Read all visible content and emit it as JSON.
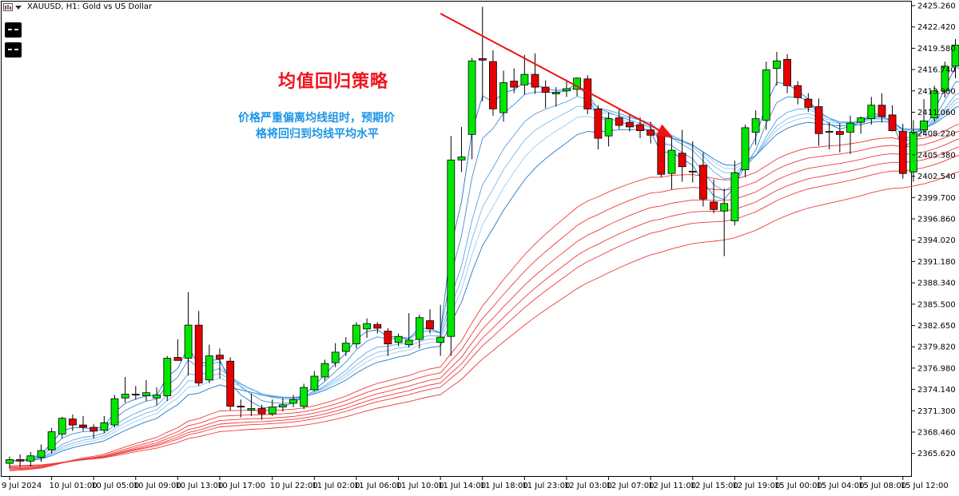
{
  "header": {
    "symbol_title": "XAUUSD, H1:  Gold vs US Dollar",
    "icon": "bars-chart-icon"
  },
  "annotation": {
    "title": "均值回归策略",
    "desc_line1": "价格严重偏离均线组时，预期价",
    "desc_line2": "格将回归到均线平均水平"
  },
  "colors": {
    "bull": "#00e600",
    "bear": "#e60000",
    "fast_ma": [
      "#1f78c8",
      "#3b8fd9",
      "#5aa3e4",
      "#7ab8ec",
      "#98cbf2"
    ],
    "slow_ma": "#ee3a3a",
    "arrow": "#f01010",
    "grid": "#000000"
  },
  "chart_data": {
    "type": "candlestick",
    "symbol": "XAUUSD",
    "timeframe": "H1",
    "title": "XAUUSD, H1:  Gold vs US Dollar",
    "ylim": [
      2362.5,
      2425.9
    ],
    "y_ticks": [
      "2365.620",
      "2368.460",
      "2371.300",
      "2374.140",
      "2376.980",
      "2379.820",
      "2382.650",
      "2385.500",
      "2388.340",
      "2391.180",
      "2394.020",
      "2396.860",
      "2399.700",
      "2402.540",
      "2405.380",
      "2408.220",
      "2411.060",
      "2413.900",
      "2416.740",
      "2419.580",
      "2422.420",
      "2425.260"
    ],
    "x_ticks": [
      {
        "index": 0,
        "label": "9 Jul 2024"
      },
      {
        "index": 4,
        "label": "10 Jul 01:00"
      },
      {
        "index": 8,
        "label": "10 Jul 05:00"
      },
      {
        "index": 12,
        "label": "10 Jul 09:00"
      },
      {
        "index": 16,
        "label": "10 Jul 13:00"
      },
      {
        "index": 20,
        "label": "10 Jul 17:00"
      },
      {
        "index": 25,
        "label": "10 Jul 22:00"
      },
      {
        "index": 29,
        "label": "11 Jul 02:00"
      },
      {
        "index": 33,
        "label": "11 Jul 06:00"
      },
      {
        "index": 37,
        "label": "11 Jul 10:00"
      },
      {
        "index": 41,
        "label": "11 Jul 14:00"
      },
      {
        "index": 45,
        "label": "11 Jul 18:00"
      },
      {
        "index": 49,
        "label": "11 Jul 23:00"
      },
      {
        "index": 53,
        "label": "12 Jul 03:00"
      },
      {
        "index": 57,
        "label": "12 Jul 07:00"
      },
      {
        "index": 61,
        "label": "12 Jul 11:00"
      },
      {
        "index": 65,
        "label": "12 Jul 15:00"
      },
      {
        "index": 69,
        "label": "12 Jul 19:00"
      },
      {
        "index": 73,
        "label": "15 Jul 00:00"
      },
      {
        "index": 77,
        "label": "15 Jul 04:00"
      },
      {
        "index": 81,
        "label": "15 Jul 08:00"
      },
      {
        "index": 85,
        "label": "15 Jul 12:00"
      }
    ],
    "candles": [
      [
        2364.3,
        2365.2,
        2363.6,
        2364.8
      ],
      [
        2364.8,
        2365.5,
        2363.8,
        2364.6
      ],
      [
        2364.6,
        2365.8,
        2363.9,
        2365.3
      ],
      [
        2365.1,
        2366.8,
        2364.5,
        2366.0
      ],
      [
        2366.1,
        2369.0,
        2365.6,
        2368.5
      ],
      [
        2368.2,
        2370.5,
        2367.6,
        2370.3
      ],
      [
        2370.2,
        2370.8,
        2368.6,
        2369.4
      ],
      [
        2369.4,
        2370.6,
        2368.6,
        2369.1
      ],
      [
        2369.1,
        2369.5,
        2367.6,
        2368.6
      ],
      [
        2368.7,
        2370.6,
        2368.3,
        2369.7
      ],
      [
        2369.4,
        2373.4,
        2369.1,
        2372.9
      ],
      [
        2373.0,
        2375.8,
        2372.4,
        2373.5
      ],
      [
        2373.5,
        2374.6,
        2372.8,
        2373.4
      ],
      [
        2373.3,
        2375.4,
        2372.6,
        2373.7
      ],
      [
        2373.0,
        2374.4,
        2372.0,
        2373.4
      ],
      [
        2373.3,
        2378.6,
        2372.6,
        2378.3
      ],
      [
        2378.4,
        2380.8,
        2378.0,
        2378.0
      ],
      [
        2378.3,
        2387.1,
        2376.0,
        2382.7
      ],
      [
        2382.7,
        2384.6,
        2374.6,
        2375.0
      ],
      [
        2375.4,
        2380.1,
        2375.0,
        2378.6
      ],
      [
        2378.7,
        2379.6,
        2375.6,
        2378.2
      ],
      [
        2377.9,
        2378.4,
        2371.3,
        2371.9
      ],
      [
        2371.9,
        2372.8,
        2370.4,
        2371.8
      ],
      [
        2371.4,
        2373.6,
        2370.6,
        2371.6
      ],
      [
        2371.6,
        2372.1,
        2370.1,
        2370.9
      ],
      [
        2370.9,
        2372.8,
        2370.6,
        2371.8
      ],
      [
        2371.8,
        2373.0,
        2371.2,
        2372.1
      ],
      [
        2372.3,
        2373.4,
        2371.8,
        2372.8
      ],
      [
        2371.9,
        2374.9,
        2371.5,
        2374.4
      ],
      [
        2374.1,
        2376.6,
        2373.9,
        2375.9
      ],
      [
        2375.8,
        2378.1,
        2375.3,
        2377.6
      ],
      [
        2377.7,
        2380.3,
        2377.1,
        2379.1
      ],
      [
        2379.2,
        2381.1,
        2378.6,
        2380.3
      ],
      [
        2380.2,
        2383.1,
        2379.6,
        2382.7
      ],
      [
        2382.2,
        2383.6,
        2381.0,
        2382.9
      ],
      [
        2382.8,
        2383.1,
        2381.6,
        2382.3
      ],
      [
        2381.9,
        2382.3,
        2378.6,
        2380.2
      ],
      [
        2380.4,
        2381.6,
        2379.9,
        2381.2
      ],
      [
        2380.1,
        2384.3,
        2379.7,
        2380.7
      ],
      [
        2380.8,
        2384.1,
        2379.6,
        2383.7
      ],
      [
        2383.3,
        2384.8,
        2381.6,
        2382.2
      ],
      [
        2380.4,
        2385.4,
        2378.6,
        2381.1
      ],
      [
        2381.2,
        2407.9,
        2378.6,
        2404.7
      ],
      [
        2404.7,
        2409.1,
        2403.1,
        2405.1
      ],
      [
        2408.1,
        2418.3,
        2404.8,
        2417.9
      ],
      [
        2418.2,
        2425.1,
        2412.5,
        2418.0
      ],
      [
        2417.8,
        2419.3,
        2410.6,
        2411.5
      ],
      [
        2411.0,
        2416.6,
        2409.8,
        2415.0
      ],
      [
        2415.2,
        2416.9,
        2413.6,
        2414.4
      ],
      [
        2414.7,
        2418.7,
        2413.4,
        2416.1
      ],
      [
        2416.1,
        2418.9,
        2413.5,
        2414.4
      ],
      [
        2414.4,
        2415.3,
        2411.6,
        2413.7
      ],
      [
        2413.5,
        2414.4,
        2411.8,
        2413.7
      ],
      [
        2413.9,
        2415.4,
        2413.1,
        2414.2
      ],
      [
        2414.1,
        2415.7,
        2413.2,
        2415.6
      ],
      [
        2415.5,
        2416.0,
        2410.8,
        2411.5
      ],
      [
        2411.5,
        2412.0,
        2406.1,
        2407.6
      ],
      [
        2407.9,
        2411.0,
        2406.5,
        2410.2
      ],
      [
        2410.3,
        2411.6,
        2408.8,
        2409.3
      ],
      [
        2409.7,
        2410.7,
        2408.5,
        2409.1
      ],
      [
        2409.4,
        2410.4,
        2407.6,
        2408.6
      ],
      [
        2408.7,
        2409.8,
        2406.9,
        2408.0
      ],
      [
        2408.3,
        2408.9,
        2402.4,
        2402.8
      ],
      [
        2402.9,
        2407.8,
        2400.8,
        2406.0
      ],
      [
        2405.6,
        2408.7,
        2401.8,
        2403.8
      ],
      [
        2403.1,
        2407.2,
        2401.7,
        2403.2
      ],
      [
        2404.0,
        2405.7,
        2398.5,
        2399.5
      ],
      [
        2399.1,
        2402.1,
        2397.6,
        2398.1
      ],
      [
        2397.9,
        2400.9,
        2391.9,
        2398.9
      ],
      [
        2396.6,
        2404.6,
        2396.0,
        2403.0
      ],
      [
        2403.4,
        2409.4,
        2402.4,
        2409.0
      ],
      [
        2408.4,
        2411.3,
        2406.7,
        2410.2
      ],
      [
        2410.0,
        2417.8,
        2408.7,
        2416.7
      ],
      [
        2416.9,
        2419.1,
        2414.6,
        2417.9
      ],
      [
        2418.1,
        2418.8,
        2413.6,
        2414.6
      ],
      [
        2414.6,
        2415.2,
        2412.1,
        2413.0
      ],
      [
        2412.8,
        2413.6,
        2411.1,
        2411.7
      ],
      [
        2411.8,
        2412.9,
        2406.6,
        2408.2
      ],
      [
        2408.4,
        2409.7,
        2406.1,
        2408.5
      ],
      [
        2408.5,
        2409.6,
        2405.7,
        2408.1
      ],
      [
        2408.4,
        2410.6,
        2405.5,
        2409.6
      ],
      [
        2409.7,
        2410.5,
        2408.2,
        2410.3
      ],
      [
        2410.2,
        2413.1,
        2409.4,
        2412.0
      ],
      [
        2412.0,
        2413.6,
        2409.7,
        2410.5
      ],
      [
        2410.7,
        2412.0,
        2408.5,
        2408.6
      ],
      [
        2408.5,
        2409.5,
        2402.2,
        2402.9
      ],
      [
        2403.1,
        2410.0,
        2401.8,
        2408.4
      ],
      [
        2408.7,
        2412.8,
        2408.0,
        2409.9
      ],
      [
        2410.3,
        2414.6,
        2409.8,
        2413.9
      ],
      [
        2413.9,
        2417.8,
        2413.0,
        2417.2
      ],
      [
        2417.2,
        2420.8,
        2415.6,
        2420.0
      ],
      [
        2420.0,
        2421.2,
        2414.5,
        2415.7
      ],
      [
        2415.4,
        2420.5,
        2413.8,
        2419.8
      ]
    ],
    "moving_averages": {
      "fast_periods": [
        3,
        5,
        8,
        10,
        12,
        15
      ],
      "slow_periods": [
        30,
        35,
        40,
        45,
        50,
        60
      ]
    },
    "arrow": {
      "from": [
        41,
        2424.2
      ],
      "to": [
        63,
        2407.8
      ]
    }
  }
}
